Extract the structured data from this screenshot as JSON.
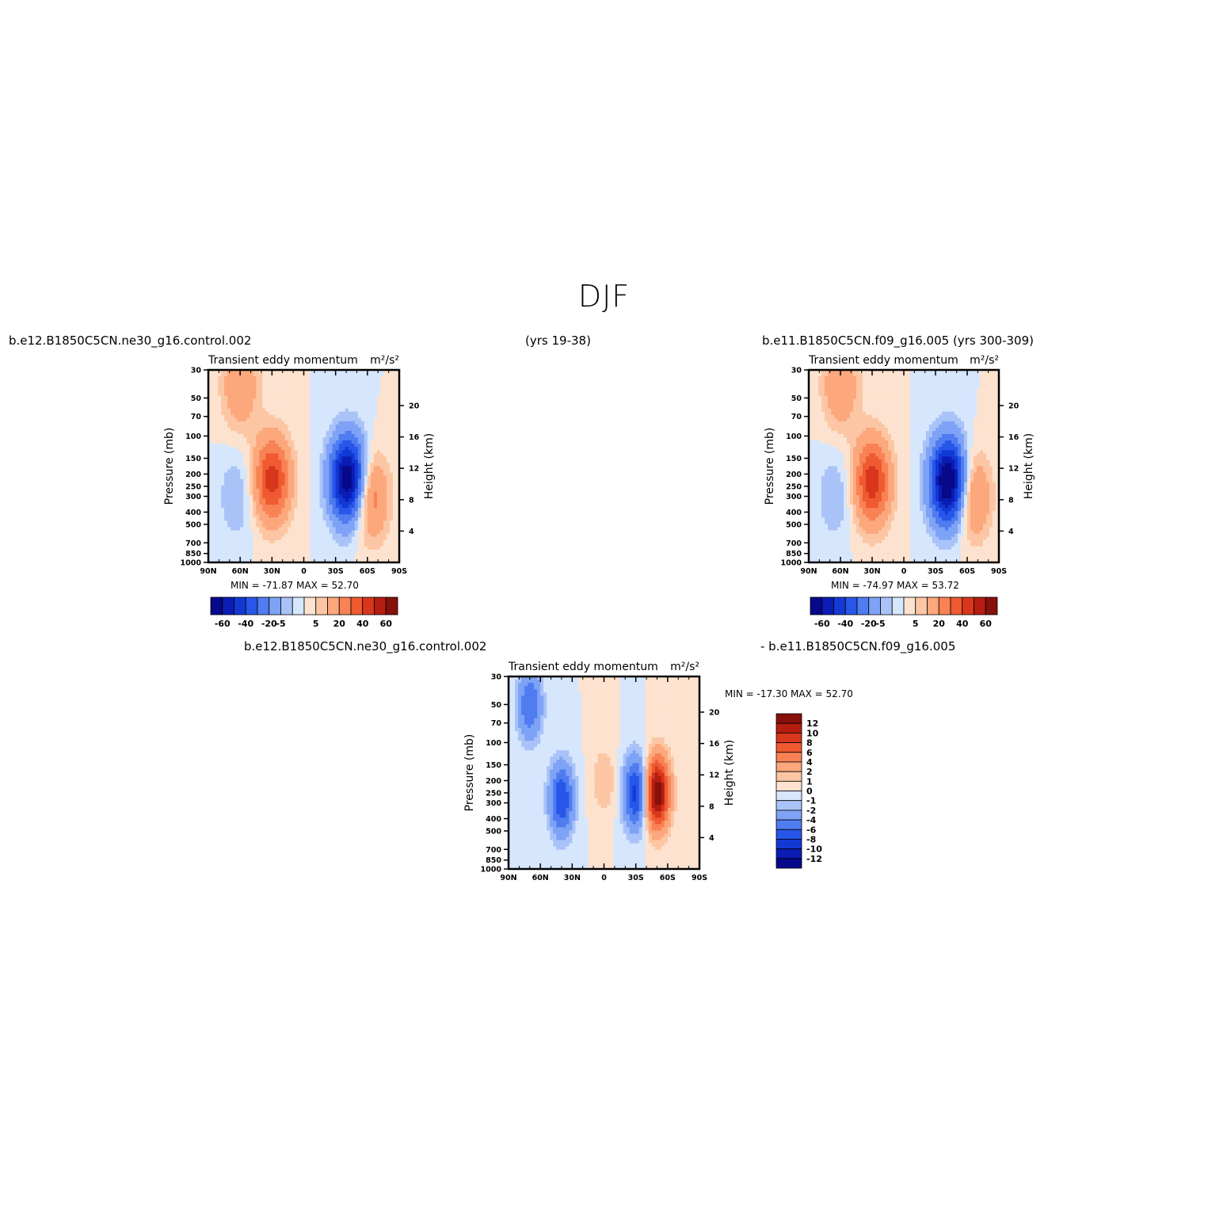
{
  "page": {
    "title": "DJF",
    "case_left": "b.e12.B1850C5CN.ne30_g16.control.002",
    "years_left": "(yrs 19-38)",
    "case_right": "b.e11.B1850C5CN.f09_g16.005 (yrs 300-309)",
    "diff_case_a": "b.e12.B1850C5CN.ne30_g16.control.002",
    "diff_case_b": "- b.e11.B1850C5CN.f09_g16.005"
  },
  "colors": {
    "palette_full": [
      "#08088a",
      "#0b1cb4",
      "#1338d4",
      "#2756e8",
      "#4f7cf0",
      "#7ea2f5",
      "#a9c3f8",
      "#d6e6fc",
      "#fde3cf",
      "#fcc6a4",
      "#fca77c",
      "#f98255",
      "#ef5a31",
      "#d8371c",
      "#b51d10",
      "#86100a"
    ],
    "palette_diff": [
      "#08088a",
      "#0b1cb4",
      "#1338d4",
      "#2756e8",
      "#4f7cf0",
      "#7ea2f5",
      "#a9c3f8",
      "#d6e6fc",
      "#fde3cf",
      "#fcc6a4",
      "#fca77c",
      "#f98255",
      "#ef5a31",
      "#d8371c",
      "#b51d10",
      "#86100a"
    ]
  },
  "chart_data": [
    {
      "id": "panel-control",
      "type": "heatmap",
      "title": "Transient eddy momentum",
      "units": "m²/s²",
      "ylabel": "Pressure (mb)",
      "ylabel_right": "Height (km)",
      "x_ticks": [
        "90N",
        "60N",
        "30N",
        "0",
        "30S",
        "60S",
        "90S"
      ],
      "y_ticks": [
        30,
        50,
        70,
        100,
        150,
        200,
        250,
        300,
        400,
        500,
        700,
        850,
        1000
      ],
      "y_right_ticks": [
        4,
        8,
        12,
        16,
        20
      ],
      "stats": "MIN = -71.87   MAX =  52.70",
      "min": -71.87,
      "max": 52.7,
      "colorbar_labels": [
        "-60",
        "-40",
        "-20",
        "-5",
        "5",
        "20",
        "40",
        "60"
      ],
      "features": [
        {
          "lat": -42,
          "p": 220,
          "value": -72
        },
        {
          "lat": 30,
          "p": 220,
          "value": 45
        },
        {
          "lat": 60,
          "p": 40,
          "value": 20
        },
        {
          "lat": -62,
          "p": 300,
          "value": 30
        },
        {
          "lat": 63,
          "p": 300,
          "value": -10
        }
      ]
    },
    {
      "id": "panel-cesm1",
      "type": "heatmap",
      "title": "Transient eddy momentum",
      "units": "m²/s²",
      "ylabel": "Pressure (mb)",
      "ylabel_right": "Height (km)",
      "x_ticks": [
        "90N",
        "60N",
        "30N",
        "0",
        "30S",
        "60S",
        "90S"
      ],
      "y_ticks": [
        30,
        50,
        70,
        100,
        150,
        200,
        250,
        300,
        400,
        500,
        700,
        850,
        1000
      ],
      "y_right_ticks": [
        4,
        8,
        12,
        16,
        20
      ],
      "stats": "MIN = -74.97   MAX =  53.72",
      "min": -74.97,
      "max": 53.72,
      "colorbar_labels": [
        "-60",
        "-40",
        "-20",
        "-5",
        "5",
        "20",
        "40",
        "60"
      ],
      "features": [
        {
          "lat": -42,
          "p": 230,
          "value": -75
        },
        {
          "lat": 30,
          "p": 230,
          "value": 46
        },
        {
          "lat": 60,
          "p": 40,
          "value": 20
        },
        {
          "lat": -65,
          "p": 300,
          "value": 25
        },
        {
          "lat": 65,
          "p": 300,
          "value": -10
        }
      ]
    },
    {
      "id": "panel-diff",
      "type": "heatmap",
      "title": "Transient eddy momentum",
      "units": "m²/s²",
      "ylabel": "Pressure (mb)",
      "ylabel_right": "Height (km)",
      "x_ticks": [
        "90N",
        "60N",
        "30N",
        "0",
        "30S",
        "60S",
        "90S"
      ],
      "y_ticks": [
        30,
        50,
        70,
        100,
        150,
        200,
        250,
        300,
        400,
        500,
        700,
        850,
        1000
      ],
      "y_right_ticks": [
        4,
        8,
        12,
        16,
        20
      ],
      "stats": "MIN = -17.30   MAX =  52.70",
      "min": -17.3,
      "max": 52.7,
      "colorbar_labels": [
        "12",
        "10",
        "8",
        "6",
        "4",
        "2",
        "1",
        "0",
        "-1",
        "-2",
        "-4",
        "-6",
        "-8",
        "-10",
        "-12"
      ],
      "features": [
        {
          "lat": -50,
          "p": 250,
          "value": 14
        },
        {
          "lat": -30,
          "p": 250,
          "value": -9
        },
        {
          "lat": 40,
          "p": 280,
          "value": -8
        },
        {
          "lat": 70,
          "p": 50,
          "value": -6
        },
        {
          "lat": 0,
          "p": 200,
          "value": 2
        }
      ]
    }
  ]
}
